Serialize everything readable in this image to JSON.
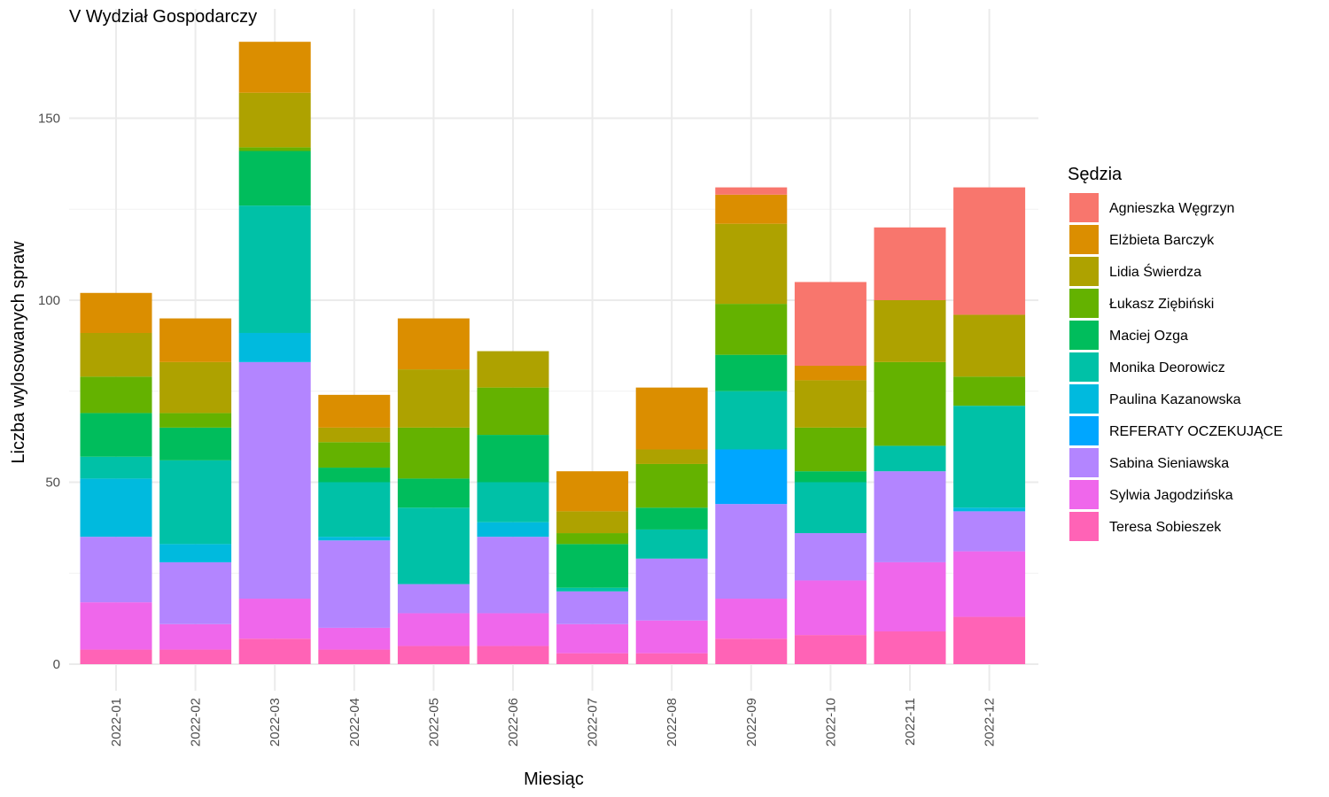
{
  "chart_data": {
    "type": "bar",
    "stacked": true,
    "title": "V Wydział Gospodarczy",
    "xlabel": "Miesiąc",
    "ylabel": "Liczba wylosowanych spraw",
    "ylim": [
      0,
      171
    ],
    "yticks": [
      0,
      50,
      100,
      150
    ],
    "grid": true,
    "legend_title": "Sędzia",
    "legend_position": "right",
    "categories": [
      "2022-01",
      "2022-02",
      "2022-03",
      "2022-04",
      "2022-05",
      "2022-06",
      "2022-07",
      "2022-08",
      "2022-09",
      "2022-10",
      "2022-11",
      "2022-12"
    ],
    "series": [
      {
        "name": "Agnieszka Węgrzyn",
        "color": "#F8766D",
        "values": [
          0,
          0,
          0,
          0,
          0,
          0,
          0,
          0,
          2,
          23,
          20,
          35
        ]
      },
      {
        "name": "Elżbieta Barczyk",
        "color": "#DB8E00",
        "values": [
          11,
          12,
          14,
          9,
          14,
          0,
          11,
          17,
          8,
          4,
          0,
          0
        ]
      },
      {
        "name": "Lidia Świerdza",
        "color": "#AEA200",
        "values": [
          12,
          14,
          15,
          4,
          16,
          10,
          6,
          4,
          22,
          13,
          17,
          17
        ]
      },
      {
        "name": "Łukasz Ziębiński",
        "color": "#64B200",
        "values": [
          10,
          4,
          1,
          7,
          14,
          13,
          3,
          12,
          14,
          12,
          23,
          8
        ]
      },
      {
        "name": "Maciej Ozga",
        "color": "#00BD5C",
        "values": [
          12,
          9,
          15,
          4,
          8,
          13,
          12,
          6,
          10,
          3,
          0,
          0
        ]
      },
      {
        "name": "Monika Deorowicz",
        "color": "#00C1A7",
        "values": [
          6,
          23,
          35,
          15,
          21,
          11,
          1,
          8,
          16,
          14,
          7,
          28
        ]
      },
      {
        "name": "Paulina Kazanowska",
        "color": "#00BADE",
        "values": [
          16,
          5,
          8,
          1,
          0,
          4,
          0,
          0,
          0,
          0,
          0,
          1
        ]
      },
      {
        "name": "REFERATY OCZEKUJĄCE",
        "color": "#00A6FF",
        "values": [
          0,
          0,
          0,
          0,
          0,
          0,
          0,
          0,
          15,
          0,
          0,
          0
        ]
      },
      {
        "name": "Sabina Sieniawska",
        "color": "#B385FF",
        "values": [
          18,
          17,
          65,
          24,
          8,
          21,
          9,
          17,
          26,
          13,
          25,
          11
        ]
      },
      {
        "name": "Sylwia Jagodzińska",
        "color": "#EF67EB",
        "values": [
          13,
          7,
          11,
          6,
          9,
          9,
          8,
          9,
          11,
          15,
          19,
          18
        ]
      },
      {
        "name": "Teresa Sobieszek",
        "color": "#FF63B6",
        "values": [
          4,
          4,
          7,
          4,
          5,
          5,
          3,
          3,
          7,
          8,
          9,
          13
        ]
      }
    ]
  }
}
